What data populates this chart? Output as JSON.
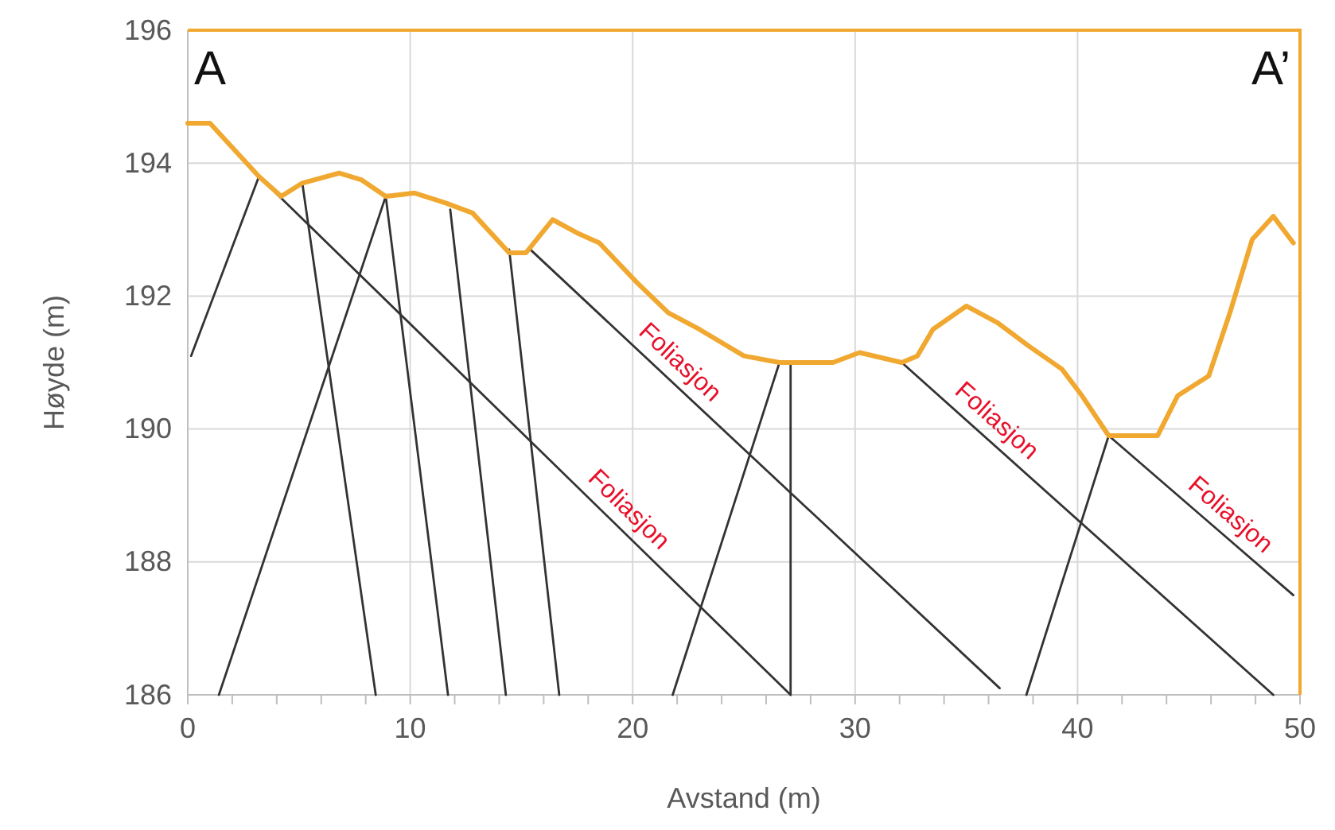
{
  "chart_data": {
    "type": "line",
    "xlabel": "Avstand (m)",
    "ylabel": "Høyde (m)",
    "xlim": [
      0,
      50
    ],
    "ylim": [
      186,
      196
    ],
    "xticks": [
      0,
      {
        "value": 2,
        "label": null
      },
      {
        "value": 4,
        "label": null
      },
      {
        "value": 6,
        "label": null
      },
      {
        "value": 8,
        "label": null
      },
      10,
      {
        "value": 12,
        "label": null
      },
      {
        "value": 14,
        "label": null
      },
      {
        "value": 16,
        "label": null
      },
      {
        "value": 18,
        "label": null
      },
      20,
      {
        "value": 22,
        "label": null
      },
      {
        "value": 24,
        "label": null
      },
      {
        "value": 26,
        "label": null
      },
      {
        "value": 28,
        "label": null
      },
      30,
      {
        "value": 32,
        "label": null
      },
      {
        "value": 34,
        "label": null
      },
      {
        "value": 36,
        "label": null
      },
      {
        "value": 38,
        "label": null
      },
      40,
      {
        "value": 42,
        "label": null
      },
      {
        "value": 44,
        "label": null
      },
      {
        "value": 46,
        "label": null
      },
      {
        "value": 48,
        "label": null
      },
      50
    ],
    "yticks": [
      186,
      188,
      190,
      192,
      194,
      196
    ],
    "grid": true,
    "marker": "none",
    "line_style": "solid",
    "series": [
      {
        "color": "#f0a830",
        "x": [
          0,
          1.0,
          3.2,
          4.2,
          5.15,
          6.8,
          7.8,
          8.9,
          10.2,
          11.6,
          12.8,
          14.45,
          15.2,
          16.4,
          17.5,
          18.5,
          20.2,
          21.6,
          23.0,
          25.0,
          26.6,
          29.0,
          30.2,
          32.1,
          32.8,
          33.5,
          35.0,
          36.4,
          37.8,
          39.3,
          40.2,
          41.4,
          43.6,
          44.5,
          45.9,
          46.85,
          47.85,
          48.8,
          49.7
        ],
        "values": [
          194.6,
          194.6,
          193.8,
          193.5,
          193.7,
          193.85,
          193.75,
          193.5,
          193.55,
          193.4,
          193.25,
          192.65,
          192.65,
          193.15,
          192.95,
          192.8,
          192.2,
          191.75,
          191.5,
          191.1,
          191.0,
          191.0,
          191.15,
          191.0,
          191.1,
          191.5,
          191.85,
          191.6,
          191.25,
          190.9,
          190.5,
          189.9,
          189.9,
          190.5,
          190.8,
          191.75,
          192.85,
          193.2,
          192.8
        ]
      },
      {
        "color": "#333333",
        "x": [
          0.15,
          3.2
        ],
        "values": [
          191.1,
          193.8
        ]
      },
      {
        "color": "#333333",
        "x": [
          3.2,
          27.1
        ],
        "values": [
          193.8,
          186
        ]
      },
      {
        "color": "#333333",
        "x": [
          5.15,
          8.45
        ],
        "values": [
          193.7,
          186
        ]
      },
      {
        "color": "#333333",
        "x": [
          1.4,
          8.9
        ],
        "values": [
          186,
          193.5
        ]
      },
      {
        "color": "#333333",
        "x": [
          8.9,
          11.7
        ],
        "values": [
          193.5,
          186
        ]
      },
      {
        "color": "#333333",
        "x": [
          11.8,
          14.3
        ],
        "values": [
          193.3,
          186
        ]
      },
      {
        "color": "#333333",
        "x": [
          14.45,
          16.7
        ],
        "values": [
          192.7,
          186
        ]
      },
      {
        "color": "#333333",
        "x": [
          15.4,
          36.5
        ],
        "values": [
          192.7,
          186.1
        ]
      },
      {
        "color": "#333333",
        "x": [
          21.8,
          26.6
        ],
        "values": [
          186,
          191.0
        ]
      },
      {
        "color": "#333333",
        "x": [
          27.1,
          27.1
        ],
        "values": [
          191.0,
          186
        ]
      },
      {
        "color": "#333333",
        "x": [
          32.1,
          48.8
        ],
        "values": [
          191.0,
          186
        ]
      },
      {
        "color": "#333333",
        "x": [
          41.4,
          49.7
        ],
        "values": [
          189.9,
          187.5
        ]
      },
      {
        "color": "#333333",
        "x": [
          37.7,
          41.4
        ],
        "values": [
          186,
          189.9
        ]
      }
    ],
    "annotations": [
      "A",
      "A’",
      "Foliasjon",
      "Foliasjon",
      "Foliasjon",
      "Foliasjon"
    ]
  }
}
